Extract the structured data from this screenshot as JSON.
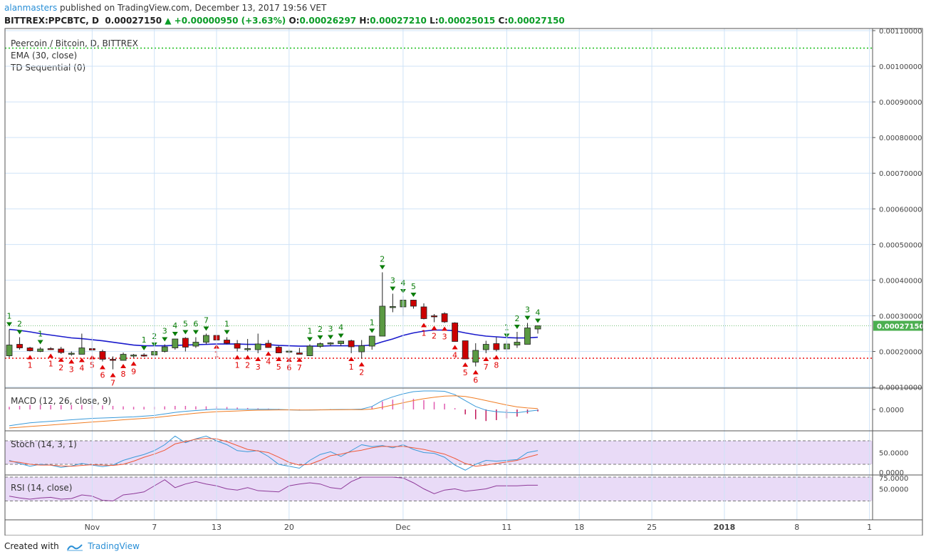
{
  "header": {
    "user": "alanmasters",
    "published_text": "published on TradingView.com, December 13, 2017 19:56 VET",
    "symbol": "BITTREX:PPCBTC, D",
    "last_price": "0.00027150",
    "change": "+0.00000950 (+3.63%)",
    "open_label": "O:",
    "open": "0.00026297",
    "high_label": "H:",
    "high": "0.00027210",
    "low_label": "L:",
    "low": "0.00025015",
    "close_label": "C:",
    "close": "0.00027150"
  },
  "footer": {
    "created_with": "Created with",
    "brand": "TradingView"
  },
  "colors": {
    "up": "#5b9a43",
    "down": "#cc0000",
    "ema": "#1a1acc",
    "td_up": "#0a7d0a",
    "td_down": "#e00000",
    "macd": "#3a9ad9",
    "signal": "#f07d24",
    "stoch_k": "#3a9ad9",
    "stoch_d": "#f05a3a",
    "rsi": "#8e3a99",
    "band": "#e3d2f5",
    "price_tag": "#4caf50",
    "grid": "#cfe3f7"
  },
  "chart_data": [
    {
      "type": "candlestick",
      "title": "Peercoin / Bitcoin, D, BITTREX",
      "legend": [
        "EMA (30, close)",
        "TD Sequential (0)"
      ],
      "price_label": "0.00027150",
      "ylim": [
        9.72e-05,
        0.0011
      ],
      "yticks": [
        "0.00110000",
        "0.00100000",
        "0.00090000",
        "0.00080000",
        "0.00070000",
        "0.00060000",
        "0.00050000",
        "0.00040000",
        "0.00030000",
        "0.00020000",
        "0.00010000"
      ],
      "ytick_values": [
        0.0011,
        0.001,
        0.0009,
        0.0008,
        0.0007,
        0.0006,
        0.0005,
        0.0004,
        0.0003,
        0.0002,
        0.0001
      ],
      "resistance_line": 0.001051,
      "support_line": 0.000181,
      "xticks": [
        {
          "label": "Nov",
          "bar": 8
        },
        {
          "label": "7",
          "bar": 14
        },
        {
          "label": "13",
          "bar": 20
        },
        {
          "label": "20",
          "bar": 27
        },
        {
          "label": "Dec",
          "bar": 38
        },
        {
          "label": "11",
          "bar": 48
        },
        {
          "label": "18",
          "bar": 55
        },
        {
          "label": "25",
          "bar": 62
        },
        {
          "label": "2018",
          "bar": 69
        },
        {
          "label": "8",
          "bar": 76
        },
        {
          "label": "1",
          "bar": 83
        }
      ],
      "candles": [
        {
          "o": 0.000188,
          "h": 0.000262,
          "l": 0.000183,
          "c": 0.000218
        },
        {
          "o": 0.00022,
          "h": 0.00024,
          "l": 0.000205,
          "c": 0.00021
        },
        {
          "o": 0.00021,
          "h": 0.000213,
          "l": 0.0002,
          "c": 0.000202
        },
        {
          "o": 0.0002,
          "h": 0.000212,
          "l": 0.000198,
          "c": 0.000207
        },
        {
          "o": 0.000208,
          "h": 0.000212,
          "l": 0.000204,
          "c": 0.000206
        },
        {
          "o": 0.000207,
          "h": 0.000213,
          "l": 0.000193,
          "c": 0.000197
        },
        {
          "o": 0.000195,
          "h": 0.0002,
          "l": 0.000188,
          "c": 0.000195
        },
        {
          "o": 0.000192,
          "h": 0.00025,
          "l": 0.000192,
          "c": 0.00021
        },
        {
          "o": 0.000208,
          "h": 0.00024,
          "l": 0.0002,
          "c": 0.000204
        },
        {
          "o": 0.0002,
          "h": 0.000205,
          "l": 0.000172,
          "c": 0.000178
        },
        {
          "o": 0.000178,
          "h": 0.000186,
          "l": 0.00015,
          "c": 0.000175
        },
        {
          "o": 0.000175,
          "h": 0.000197,
          "l": 0.000175,
          "c": 0.000192
        },
        {
          "o": 0.000188,
          "h": 0.000193,
          "l": 0.000182,
          "c": 0.00019
        },
        {
          "o": 0.00019,
          "h": 0.000195,
          "l": 0.000185,
          "c": 0.000188
        },
        {
          "o": 0.00019,
          "h": 0.000205,
          "l": 0.000187,
          "c": 0.0002
        },
        {
          "o": 0.0002,
          "h": 0.00022,
          "l": 0.000197,
          "c": 0.000213
        },
        {
          "o": 0.00021,
          "h": 0.000235,
          "l": 0.000205,
          "c": 0.000235
        },
        {
          "o": 0.000237,
          "h": 0.00024,
          "l": 0.0002,
          "c": 0.000212
        },
        {
          "o": 0.000215,
          "h": 0.00024,
          "l": 0.00021,
          "c": 0.000226
        },
        {
          "o": 0.000226,
          "h": 0.00025,
          "l": 0.00022,
          "c": 0.000245
        },
        {
          "o": 0.000245,
          "h": 0.00025,
          "l": 0.00023,
          "c": 0.000232
        },
        {
          "o": 0.000232,
          "h": 0.00024,
          "l": 0.00022,
          "c": 0.000223
        },
        {
          "o": 0.000222,
          "h": 0.000232,
          "l": 0.0002,
          "c": 0.000209
        },
        {
          "o": 0.000206,
          "h": 0.000235,
          "l": 0.0002,
          "c": 0.000208
        },
        {
          "o": 0.000205,
          "h": 0.00025,
          "l": 0.000195,
          "c": 0.000221
        },
        {
          "o": 0.000223,
          "h": 0.000232,
          "l": 0.00021,
          "c": 0.000211
        },
        {
          "o": 0.000212,
          "h": 0.000216,
          "l": 0.000195,
          "c": 0.000196
        },
        {
          "o": 0.0002,
          "h": 0.000206,
          "l": 0.000193,
          "c": 0.000201
        },
        {
          "o": 0.000196,
          "h": 0.00021,
          "l": 0.000193,
          "c": 0.000192
        },
        {
          "o": 0.000188,
          "h": 0.00022,
          "l": 0.000188,
          "c": 0.000215
        },
        {
          "o": 0.000214,
          "h": 0.000225,
          "l": 0.00021,
          "c": 0.000222
        },
        {
          "o": 0.000222,
          "h": 0.000226,
          "l": 0.000215,
          "c": 0.000224
        },
        {
          "o": 0.000222,
          "h": 0.00023,
          "l": 0.000215,
          "c": 0.000229
        },
        {
          "o": 0.00023,
          "h": 0.000233,
          "l": 0.000195,
          "c": 0.000213
        },
        {
          "o": 0.000199,
          "h": 0.000232,
          "l": 0.00018,
          "c": 0.000216
        },
        {
          "o": 0.000215,
          "h": 0.000244,
          "l": 0.000205,
          "c": 0.000243
        },
        {
          "o": 0.000243,
          "h": 0.000422,
          "l": 0.000243,
          "c": 0.000327
        },
        {
          "o": 0.000323,
          "h": 0.000362,
          "l": 0.00031,
          "c": 0.000326
        },
        {
          "o": 0.000325,
          "h": 0.000355,
          "l": 0.0003,
          "c": 0.000344
        },
        {
          "o": 0.000344,
          "h": 0.000345,
          "l": 0.00032,
          "c": 0.000327
        },
        {
          "o": 0.000325,
          "h": 0.000335,
          "l": 0.00029,
          "c": 0.000292
        },
        {
          "o": 0.0003,
          "h": 0.000305,
          "l": 0.000282,
          "c": 0.000299
        },
        {
          "o": 0.000306,
          "h": 0.00031,
          "l": 0.00028,
          "c": 0.000283
        },
        {
          "o": 0.00028,
          "h": 0.000282,
          "l": 0.000228,
          "c": 0.000228
        },
        {
          "o": 0.00023,
          "h": 0.00023,
          "l": 0.000179,
          "c": 0.000179
        },
        {
          "o": 0.00017,
          "h": 0.000223,
          "l": 0.000158,
          "c": 0.000203
        },
        {
          "o": 0.000205,
          "h": 0.00023,
          "l": 0.000195,
          "c": 0.00022
        },
        {
          "o": 0.000222,
          "h": 0.00024,
          "l": 0.0002,
          "c": 0.000205
        },
        {
          "o": 0.000207,
          "h": 0.00023,
          "l": 0.000198,
          "c": 0.000221
        },
        {
          "o": 0.000218,
          "h": 0.000255,
          "l": 0.00021,
          "c": 0.000226
        },
        {
          "o": 0.00022,
          "h": 0.00028,
          "l": 0.00022,
          "c": 0.000266
        },
        {
          "o": 0.000263,
          "h": 0.000272,
          "l": 0.00025,
          "c": 0.000272
        }
      ],
      "ema": [
        0.000262,
        0.000259,
        0.000255,
        0.00025,
        0.000246,
        0.000242,
        0.000238,
        0.000236,
        0.000233,
        0.00023,
        0.000226,
        0.000222,
        0.000218,
        0.000216,
        0.000216,
        0.000216,
        0.000217,
        0.000218,
        0.000219,
        0.00022,
        0.000221,
        0.000221,
        0.000221,
        0.00022,
        0.00022,
        0.000219,
        0.000217,
        0.000216,
        0.000215,
        0.000215,
        0.000215,
        0.000216,
        0.000216,
        0.000216,
        0.000216,
        0.000218,
        0.000227,
        0.000235,
        0.000245,
        0.000252,
        0.000257,
        0.00026,
        0.00026,
        0.000258,
        0.000252,
        0.000247,
        0.000243,
        0.000241,
        0.000239,
        0.000238,
        0.000238,
        0.00024
      ],
      "td_up": [
        {
          "bar": 0,
          "n": "1"
        },
        {
          "bar": 1,
          "n": "2"
        },
        {
          "bar": 3,
          "n": "1"
        },
        {
          "bar": 13,
          "n": "1"
        },
        {
          "bar": 14,
          "n": "2"
        },
        {
          "bar": 15,
          "n": "3"
        },
        {
          "bar": 16,
          "n": "4"
        },
        {
          "bar": 17,
          "n": "5"
        },
        {
          "bar": 18,
          "n": "6"
        },
        {
          "bar": 19,
          "n": "7"
        },
        {
          "bar": 21,
          "n": "1"
        },
        {
          "bar": 29,
          "n": "1"
        },
        {
          "bar": 30,
          "n": "2"
        },
        {
          "bar": 31,
          "n": "3"
        },
        {
          "bar": 32,
          "n": "4"
        },
        {
          "bar": 35,
          "n": "1"
        },
        {
          "bar": 36,
          "n": "2"
        },
        {
          "bar": 37,
          "n": "3"
        },
        {
          "bar": 38,
          "n": "4"
        },
        {
          "bar": 39,
          "n": "5"
        },
        {
          "bar": 48,
          "n": "1"
        },
        {
          "bar": 49,
          "n": "2"
        },
        {
          "bar": 50,
          "n": "3"
        },
        {
          "bar": 51,
          "n": "4"
        }
      ],
      "td_down": [
        {
          "bar": 2,
          "n": "1"
        },
        {
          "bar": 4,
          "n": "1"
        },
        {
          "bar": 5,
          "n": "2"
        },
        {
          "bar": 6,
          "n": "3"
        },
        {
          "bar": 7,
          "n": "4"
        },
        {
          "bar": 8,
          "n": "5"
        },
        {
          "bar": 9,
          "n": "6"
        },
        {
          "bar": 10,
          "n": "7"
        },
        {
          "bar": 11,
          "n": "8"
        },
        {
          "bar": 12,
          "n": "9"
        },
        {
          "bar": 20,
          "n": "1"
        },
        {
          "bar": 22,
          "n": "1"
        },
        {
          "bar": 23,
          "n": "2"
        },
        {
          "bar": 24,
          "n": "3"
        },
        {
          "bar": 25,
          "n": "4"
        },
        {
          "bar": 26,
          "n": "5"
        },
        {
          "bar": 27,
          "n": "6"
        },
        {
          "bar": 28,
          "n": "7"
        },
        {
          "bar": 33,
          "n": "1"
        },
        {
          "bar": 34,
          "n": "2"
        },
        {
          "bar": 40,
          "n": "1"
        },
        {
          "bar": 41,
          "n": "2"
        },
        {
          "bar": 42,
          "n": "3"
        },
        {
          "bar": 43,
          "n": "4"
        },
        {
          "bar": 44,
          "n": "5"
        },
        {
          "bar": 45,
          "n": "6"
        },
        {
          "bar": 46,
          "n": "7"
        },
        {
          "bar": 47,
          "n": "8"
        }
      ]
    },
    {
      "type": "line",
      "title": "MACD (12, 26, close, 9)",
      "ytick": "0.0000",
      "macd": [
        -2.2e-05,
        -2e-05,
        -1.8e-05,
        -1.7e-05,
        -1.6e-05,
        -1.5e-05,
        -1.4e-05,
        -1.3e-05,
        -1.2e-05,
        -1.15e-05,
        -1.1e-05,
        -1.05e-05,
        -1e-05,
        -9e-06,
        -8e-06,
        -6e-06,
        -4e-06,
        -2.5e-06,
        -1.5e-06,
        -5e-07,
        5e-07,
        3e-07,
        2e-07,
        2e-07,
        3e-07,
        2e-07,
        0.0,
        -5e-07,
        -1e-06,
        -8e-07,
        -5e-07,
        -2e-07,
        0.0,
        0.0,
        5e-07,
        4e-06,
        1.2e-05,
        1.7e-05,
        2.1e-05,
        2.4e-05,
        2.5e-05,
        2.5e-05,
        2.45e-05,
        2e-05,
        1.2e-05,
        4e-06,
        -1e-06,
        -3e-06,
        -4e-06,
        -4.5e-06,
        -2.5e-06,
        -1e-06
      ],
      "signal": [
        -2.5e-05,
        -2.4e-05,
        -2.3e-05,
        -2.2e-05,
        -2.1e-05,
        -2e-05,
        -1.9e-05,
        -1.8e-05,
        -1.7e-05,
        -1.6e-05,
        -1.5e-05,
        -1.4e-05,
        -1.3e-05,
        -1.2e-05,
        -1.1e-05,
        -9.5e-06,
        -8e-06,
        -6.5e-06,
        -5e-06,
        -4e-06,
        -3e-06,
        -2.5e-06,
        -2e-06,
        -1.5e-06,
        -1e-06,
        -8e-07,
        -6e-07,
        -6e-07,
        -7e-07,
        -7e-07,
        -6e-07,
        -5e-07,
        -4e-07,
        -3e-07,
        -2e-07,
        5e-07,
        3e-06,
        6e-06,
        9e-06,
        1.2e-05,
        1.45e-05,
        1.65e-05,
        1.8e-05,
        1.85e-05,
        1.75e-05,
        1.5e-05,
        1.2e-05,
        9e-06,
        6e-06,
        3.5e-06,
        2e-06,
        1.2e-06
      ]
    },
    {
      "type": "line",
      "title": "Stoch (14, 3, 1)",
      "yticks": [
        "50.0000",
        "0.0000"
      ],
      "band": [
        20,
        80
      ],
      "k": [
        30,
        22,
        15,
        20,
        18,
        12,
        16,
        22,
        18,
        14,
        18,
        30,
        38,
        45,
        55,
        70,
        92,
        75,
        85,
        92,
        80,
        70,
        55,
        52,
        55,
        40,
        20,
        15,
        10,
        30,
        45,
        52,
        40,
        55,
        70,
        65,
        68,
        62,
        70,
        58,
        50,
        48,
        38,
        18,
        5,
        20,
        30,
        28,
        30,
        32,
        50,
        55
      ],
      "d": [
        28,
        25,
        20,
        18,
        18,
        16,
        15,
        17,
        19,
        18,
        17,
        20,
        28,
        38,
        46,
        56,
        72,
        78,
        84,
        86,
        85,
        78,
        68,
        58,
        54,
        50,
        38,
        25,
        18,
        20,
        30,
        42,
        46,
        52,
        56,
        62,
        66,
        65,
        66,
        62,
        58,
        52,
        46,
        35,
        22,
        15,
        18,
        22,
        26,
        30,
        38,
        45
      ]
    },
    {
      "type": "line",
      "title": "RSI (14, close)",
      "yticks": [
        "75.0000",
        "50.0000"
      ],
      "band": [
        30,
        70
      ],
      "rsi": [
        38,
        35,
        33,
        35,
        36,
        33,
        34,
        40,
        38,
        31,
        30,
        40,
        42,
        45,
        55,
        65,
        52,
        58,
        62,
        58,
        55,
        50,
        48,
        52,
        47,
        46,
        45,
        55,
        58,
        60,
        58,
        52,
        50,
        62,
        80,
        78,
        80,
        70,
        68,
        60,
        50,
        42,
        48,
        50,
        46,
        48,
        50,
        55,
        55,
        55,
        56,
        56
      ]
    }
  ]
}
